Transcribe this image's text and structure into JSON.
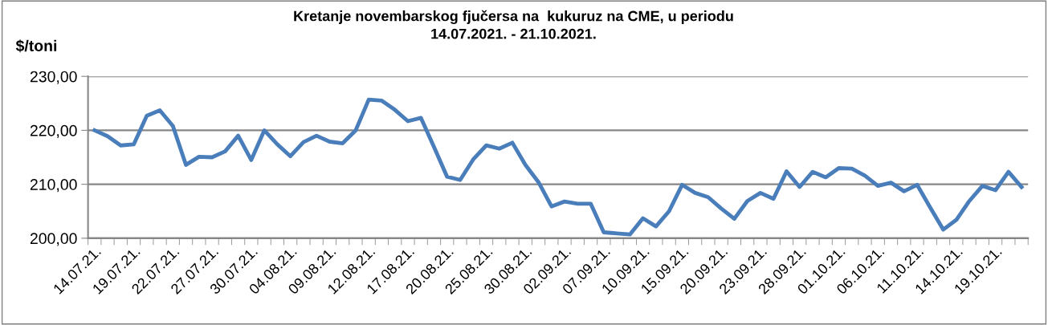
{
  "chart_data": {
    "type": "line",
    "title": "Kretanje novembarskog fjučersa na  kukuruz na CME, u periodu\n14.07.2021. - 21.10.2021.",
    "ylabel": "$/toni",
    "categories": [
      "14.07.21.",
      null,
      null,
      "19.07.21.",
      null,
      null,
      "22.07.21.",
      null,
      null,
      "27.07.21.",
      null,
      null,
      "30.07.21.",
      null,
      null,
      "04.08.21.",
      null,
      null,
      "09.08.21.",
      null,
      null,
      "12.08.21.",
      null,
      null,
      "17.08.21.",
      null,
      null,
      "20.08.21.",
      null,
      null,
      "25.08.21.",
      null,
      null,
      "30.08.21.",
      null,
      null,
      "02.09.21.",
      null,
      null,
      "07.09.21.",
      null,
      null,
      "10.09.21.",
      null,
      null,
      "15.09.21.",
      null,
      null,
      "20.09.21.",
      null,
      null,
      "23.09.21.",
      null,
      null,
      "28.09.21.",
      null,
      null,
      "01.10.21.",
      null,
      null,
      "06.10.21.",
      null,
      null,
      "11.10.21.",
      null,
      null,
      "14.10.21.",
      null,
      null,
      "19.10.21.",
      null,
      null
    ],
    "series": [
      {
        "color": "#4a7ebb",
        "values": [
          220.0,
          218.9,
          217.2,
          217.4,
          222.7,
          223.7,
          220.8,
          213.6,
          215.1,
          215.0,
          216.1,
          219.0,
          214.5,
          220.0,
          217.4,
          215.2,
          217.8,
          219.0,
          217.9,
          217.6,
          220.0,
          225.7,
          225.5,
          223.8,
          221.7,
          222.3,
          216.9,
          211.4,
          210.8,
          214.6,
          217.2,
          216.6,
          217.7,
          213.6,
          210.4,
          205.9,
          206.8,
          206.4,
          206.4,
          201.1,
          200.9,
          200.7,
          203.7,
          202.2,
          205.0,
          209.9,
          208.4,
          207.6,
          205.5,
          203.6,
          206.9,
          208.4,
          207.3,
          212.4,
          209.5,
          212.3,
          211.3,
          213.0,
          212.9,
          211.6,
          209.7,
          210.3,
          208.7,
          209.9,
          205.7,
          201.6,
          203.4,
          206.9,
          209.7,
          208.9,
          212.3,
          209.5
        ]
      }
    ],
    "ylim": [
      200,
      230
    ],
    "yticks": [
      {
        "value": 200,
        "label": "200,00"
      },
      {
        "value": 210,
        "label": "210,00"
      },
      {
        "value": 220,
        "label": "220,00"
      },
      {
        "value": 230,
        "label": "230,00"
      }
    ],
    "grid": "y",
    "legend": false,
    "marker": "none",
    "line_style": "solid"
  }
}
